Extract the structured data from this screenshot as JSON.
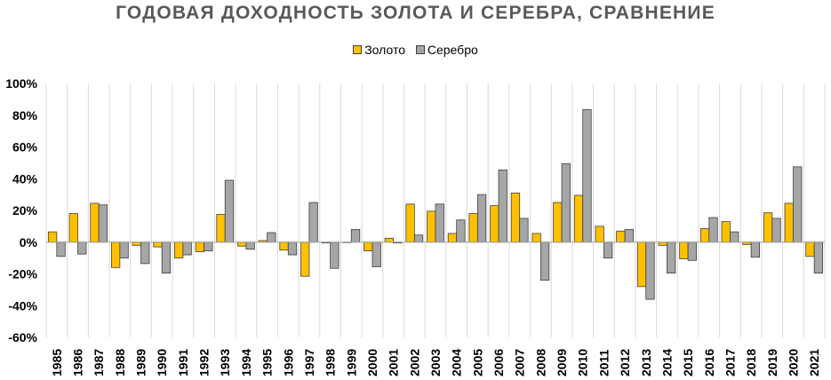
{
  "chart_data": {
    "type": "bar",
    "title": "ГОДОВАЯ ДОХОДНОСТЬ ЗОЛОТА И СЕРЕБРА, СРАВНЕНИЕ",
    "categories": [
      "1985",
      "1986",
      "1987",
      "1988",
      "1989",
      "1990",
      "1991",
      "1992",
      "1993",
      "1994",
      "1995",
      "1996",
      "1997",
      "1998",
      "1999",
      "2000",
      "2001",
      "2002",
      "2003",
      "2004",
      "2005",
      "2006",
      "2007",
      "2008",
      "2009",
      "2010",
      "2011",
      "2012",
      "2013",
      "2014",
      "2015",
      "2016",
      "2017",
      "2018",
      "2019",
      "2020",
      "2021"
    ],
    "series": [
      {
        "name": "Золото",
        "color": "#FFC000",
        "values": [
          6.5,
          18,
          24.5,
          -16,
          -2,
          -3,
          -10,
          -6,
          17.5,
          -2.5,
          1,
          -5,
          -21.5,
          -0.5,
          0,
          -5.5,
          2.5,
          24,
          19.5,
          5.5,
          18,
          23,
          31,
          5.5,
          25,
          29.5,
          10,
          7,
          -28,
          -2,
          -10.5,
          8.5,
          13,
          -1.5,
          18.5,
          24.5,
          -9
        ]
      },
      {
        "name": "Серебро",
        "color": "#A6A6A6",
        "values": [
          -9,
          -7.5,
          23.5,
          -10,
          -13.5,
          -19.5,
          -8,
          -5.5,
          39,
          -4.5,
          6,
          -8,
          25,
          -16.5,
          8,
          -15.5,
          -0.5,
          4.5,
          24,
          14,
          30,
          45.5,
          15,
          -24,
          49.5,
          83.5,
          -10,
          8,
          -36,
          -19.5,
          -11.5,
          15.5,
          6.5,
          -9.5,
          15,
          47.5,
          -19.5
        ]
      }
    ],
    "y_ticks": [
      "-60%",
      "-40%",
      "-20%",
      "0%",
      "20%",
      "40%",
      "60%",
      "80%",
      "100%"
    ],
    "ylim": [
      -60,
      100
    ],
    "y_step": 20,
    "legend_position": "top",
    "grid": "vertical"
  }
}
